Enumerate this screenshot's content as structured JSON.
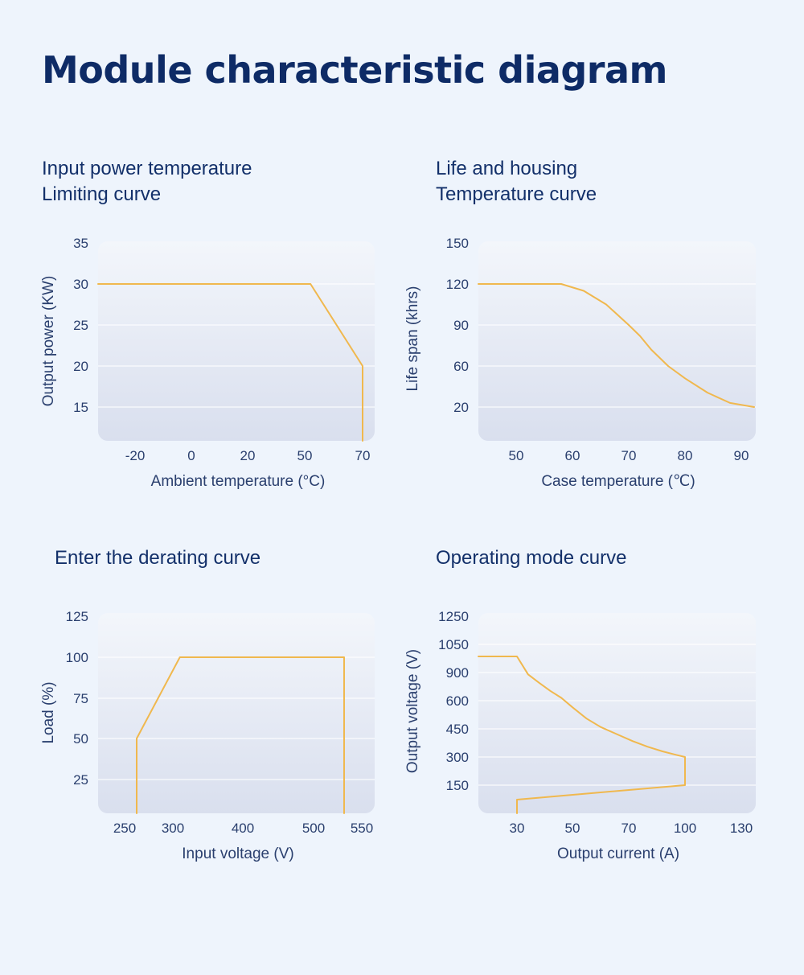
{
  "page": {
    "title": "Module characteristic diagram"
  },
  "colors": {
    "background": "#eef4fc",
    "title": "#0e2b66",
    "curve": "#f0b84e",
    "plot_top": "#f3f6fb",
    "plot_bottom": "#d9dfee",
    "grid": "#ffffff"
  },
  "chart_data": [
    {
      "id": "c1",
      "type": "line",
      "title_lines": [
        "Input power temperature",
        "Limiting curve"
      ],
      "xlabel": "Ambient temperature (°C)",
      "ylabel": "Output power (KW)",
      "xticks": [
        "-20",
        "0",
        "20",
        "50",
        "70"
      ],
      "yticks": [
        "35",
        "30",
        "25",
        "20",
        "15"
      ],
      "series": [
        {
          "points": [
            [
              -33,
              30
            ],
            [
              52,
              30
            ],
            [
              70,
              20
            ],
            [
              70,
              11
            ]
          ]
        }
      ]
    },
    {
      "id": "c2",
      "type": "line",
      "title_lines": [
        "Life and housing",
        "Temperature curve"
      ],
      "xlabel": "Case temperature (℃)",
      "ylabel": "Life span (khrs)",
      "xticks": [
        "50",
        "60",
        "70",
        "80",
        "90"
      ],
      "yticks": [
        "150",
        "120",
        "90",
        "60",
        "20"
      ],
      "series": [
        {
          "points": [
            [
              43,
              120
            ],
            [
              58,
              120
            ],
            [
              62,
              115
            ],
            [
              66,
              105
            ],
            [
              70,
              90
            ],
            [
              72,
              82
            ],
            [
              74,
              72
            ],
            [
              77,
              60
            ],
            [
              80,
              48
            ],
            [
              84,
              34
            ],
            [
              88,
              24
            ],
            [
              91.5,
              20
            ]
          ]
        }
      ]
    },
    {
      "id": "c3",
      "type": "line",
      "title_lines": [
        "Enter the derating curve"
      ],
      "xlabel": "Input voltage (V)",
      "ylabel": "Load (%)",
      "xticks": [
        "250",
        "300",
        "400",
        "500",
        "550"
      ],
      "yticks": [
        "125",
        "100",
        "75",
        "50",
        "25"
      ],
      "series": [
        {
          "points": [
            [
              260,
              5
            ],
            [
              260,
              50
            ],
            [
              310,
              100
            ],
            [
              530,
              100
            ],
            [
              530,
              5
            ]
          ]
        }
      ]
    },
    {
      "id": "c4",
      "type": "line",
      "title_lines": [
        "Operating mode curve"
      ],
      "xlabel": "Output current (A)",
      "ylabel": "Output voltage (V)",
      "xticks": [
        "30",
        "50",
        "70",
        "100",
        "130"
      ],
      "yticks": [
        "1250",
        "1050",
        "900",
        "600",
        "450",
        "300",
        "150"
      ],
      "series": [
        {
          "points": [
            [
              16,
              970
            ],
            [
              30,
              970
            ],
            [
              34,
              880
            ],
            [
              38,
              790
            ],
            [
              42,
              705
            ],
            [
              46,
              630
            ],
            [
              50,
              565
            ],
            [
              55,
              505
            ],
            [
              60,
              460
            ],
            [
              66,
              420
            ],
            [
              72,
              385
            ],
            [
              80,
              355
            ],
            [
              88,
              330
            ],
            [
              95,
              312
            ],
            [
              100,
              300
            ],
            [
              100,
              150
            ],
            [
              30,
              65
            ],
            [
              30,
              10
            ]
          ]
        }
      ]
    }
  ]
}
